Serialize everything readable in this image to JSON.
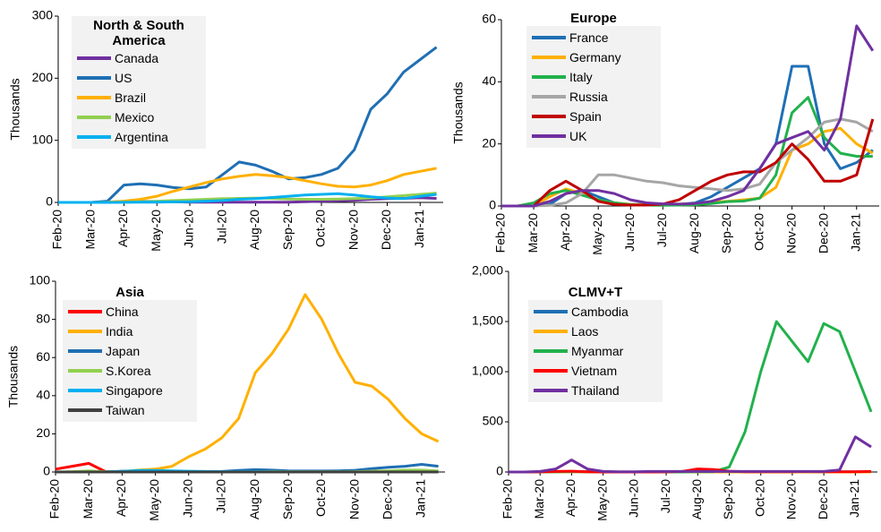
{
  "chart_data": [
    {
      "type": "line",
      "title": "North & South America",
      "y_label": "Thousands",
      "categories": [
        "Feb-20",
        null,
        "Mar-20",
        null,
        "Apr-20",
        null,
        "May-20",
        null,
        "Jun-20",
        null,
        "Jul-20",
        null,
        "Aug-20",
        null,
        "Sep-20",
        null,
        "Oct-20",
        null,
        "Nov-20",
        null,
        "Dec-20",
        null,
        "Jan-21",
        null
      ],
      "ylim": [
        0,
        300
      ],
      "yticks": [
        0,
        100,
        200,
        300
      ],
      "series": [
        {
          "name": "Canada",
          "color": "#7030a0",
          "values": [
            0,
            0,
            0,
            0.5,
            1.5,
            1.8,
            1.5,
            1,
            0.5,
            0.3,
            0.3,
            0.4,
            0.4,
            0.4,
            0.5,
            1,
            1.8,
            2.5,
            3.5,
            5,
            6,
            6.5,
            7.5,
            6.5
          ]
        },
        {
          "name": "US",
          "color": "#1f6fb4",
          "values": [
            0,
            0,
            0,
            2,
            28,
            30,
            28,
            24,
            22,
            25,
            45,
            65,
            60,
            50,
            38,
            40,
            45,
            55,
            85,
            150,
            175,
            210,
            230,
            250
          ]
        },
        {
          "name": "Brazil",
          "color": "#ffb000",
          "values": [
            0,
            0,
            0,
            0.5,
            2,
            5,
            10,
            18,
            25,
            32,
            38,
            42,
            45,
            43,
            40,
            35,
            30,
            26,
            25,
            28,
            35,
            45,
            50,
            55
          ]
        },
        {
          "name": "Mexico",
          "color": "#92d050",
          "values": [
            0,
            0,
            0,
            0,
            0.5,
            1,
            2,
            3,
            4,
            5,
            6,
            6.5,
            7,
            6.5,
            5.5,
            5,
            5,
            5.5,
            6,
            7,
            9,
            11,
            13,
            15
          ]
        },
        {
          "name": "Argentina",
          "color": "#00b0f0",
          "values": [
            0,
            0,
            0,
            0,
            0.2,
            0.3,
            0.5,
            0.8,
            1,
            2,
            3,
            5,
            6,
            8,
            10,
            12,
            13,
            14,
            12,
            9,
            7,
            6,
            10,
            13
          ]
        }
      ]
    },
    {
      "type": "line",
      "title": "Europe",
      "y_label": "Thousands",
      "categories": [
        "Feb-20",
        null,
        "Mar-20",
        null,
        "Apr-20",
        null,
        "May-20",
        null,
        "Jun-20",
        null,
        "Jul-20",
        null,
        "Aug-20",
        null,
        "Sep-20",
        null,
        "Oct-20",
        null,
        "Nov-20",
        null,
        "Dec-20",
        null,
        "Jan-21",
        null
      ],
      "ylim": [
        0,
        60
      ],
      "yticks": [
        0,
        20,
        40,
        60
      ],
      "series": [
        {
          "name": "France",
          "color": "#1f6fb4",
          "values": [
            0,
            0,
            0,
            0.5,
            4,
            5,
            3,
            1,
            0.5,
            0.5,
            0.5,
            0.5,
            1,
            3,
            6,
            9,
            12,
            20,
            45,
            45,
            20,
            12,
            14,
            18
          ]
        },
        {
          "name": "Germany",
          "color": "#ffb000",
          "values": [
            0,
            0,
            0,
            3,
            5.5,
            4,
            2,
            1,
            0.5,
            0.4,
            0.4,
            0.6,
            0.8,
            1.2,
            1.5,
            2,
            2.5,
            6,
            18,
            20,
            24,
            25,
            20,
            17
          ]
        },
        {
          "name": "Italy",
          "color": "#22b14c",
          "values": [
            0,
            0,
            1,
            4,
            5,
            3.5,
            2,
            1,
            0.4,
            0.3,
            0.2,
            0.3,
            0.4,
            0.8,
            1.4,
            1.6,
            2.5,
            10,
            30,
            35,
            22,
            17,
            16,
            16
          ]
        },
        {
          "name": "Russia",
          "color": "#a6a6a6",
          "values": [
            0,
            0,
            0,
            0.2,
            1,
            4,
            10,
            10,
            9,
            8,
            7.5,
            6.5,
            6,
            5.5,
            5,
            5.5,
            7,
            14,
            18,
            22,
            27,
            28,
            27,
            24
          ]
        },
        {
          "name": "Spain",
          "color": "#c00000",
          "values": [
            0,
            0,
            0,
            5,
            8,
            5,
            1.5,
            0.5,
            0.3,
            0.3,
            0.6,
            2,
            5,
            8,
            10,
            11,
            11,
            14,
            20,
            15,
            8,
            8,
            10,
            28
          ]
        },
        {
          "name": "UK",
          "color": "#7030a0",
          "values": [
            0,
            0,
            0,
            1.5,
            4,
            5,
            5,
            4,
            2,
            1,
            0.7,
            0.6,
            0.8,
            1.5,
            3,
            5,
            12,
            20,
            22,
            24,
            18,
            28,
            58,
            50
          ]
        }
      ]
    },
    {
      "type": "line",
      "title": "Asia",
      "y_label": "Thousands",
      "categories": [
        "Feb-20",
        null,
        "Mar-20",
        null,
        "Apr-20",
        null,
        "May-20",
        null,
        "Jun-20",
        null,
        "Jul-20",
        null,
        "Aug-20",
        null,
        "Sep-20",
        null,
        "Oct-20",
        null,
        "Nov-20",
        null,
        "Dec-20",
        null,
        "Jan-21",
        null
      ],
      "ylim": [
        0,
        100
      ],
      "yticks": [
        0,
        20,
        40,
        60,
        80,
        100
      ],
      "series": [
        {
          "name": "China",
          "color": "#ff0000",
          "values": [
            1.5,
            3,
            4.5,
            0.2,
            0.05,
            0.05,
            0,
            0,
            0,
            0,
            0,
            0,
            0.05,
            0,
            0,
            0,
            0,
            0,
            0,
            0,
            0,
            0,
            0.1,
            0.1
          ]
        },
        {
          "name": "India",
          "color": "#ffb000",
          "values": [
            0,
            0,
            0,
            0,
            0.3,
            1,
            1.5,
            3,
            8,
            12,
            18,
            28,
            52,
            62,
            75,
            93,
            80,
            62,
            47,
            45,
            38,
            28,
            20,
            16
          ]
        },
        {
          "name": "Japan",
          "color": "#1f6fb4",
          "values": [
            0,
            0,
            0,
            0.1,
            0.4,
            0.5,
            0.2,
            0.05,
            0.05,
            0.1,
            0.3,
            0.8,
            1.2,
            1,
            0.6,
            0.5,
            0.5,
            0.6,
            0.9,
            1.8,
            2.5,
            3,
            4,
            3
          ]
        },
        {
          "name": "S.Korea",
          "color": "#92d050",
          "values": [
            0,
            0.2,
            0.6,
            0.1,
            0.1,
            0.05,
            0.05,
            0.05,
            0.05,
            0.05,
            0.05,
            0.05,
            0.1,
            0.3,
            0.2,
            0.1,
            0.1,
            0.1,
            0.2,
            0.4,
            0.6,
            1,
            1,
            0.5
          ]
        },
        {
          "name": "Singapore",
          "color": "#00b0f0",
          "values": [
            0,
            0,
            0,
            0,
            0.3,
            0.8,
            0.8,
            0.6,
            0.4,
            0.3,
            0.2,
            0.2,
            0.2,
            0.1,
            0.05,
            0,
            0,
            0,
            0,
            0,
            0,
            0,
            0,
            0
          ]
        },
        {
          "name": "Taiwan",
          "color": "#404040",
          "values": [
            0,
            0,
            0,
            0,
            0,
            0,
            0,
            0,
            0,
            0,
            0,
            0,
            0,
            0,
            0,
            0,
            0,
            0,
            0,
            0,
            0,
            0,
            0,
            0
          ]
        }
      ]
    },
    {
      "type": "line",
      "title": "CLMV+T",
      "categories": [
        "Feb-20",
        null,
        "Mar-20",
        null,
        "Apr-20",
        null,
        "May-20",
        null,
        "Jun-20",
        null,
        "Jul-20",
        null,
        "Aug-20",
        null,
        "Sep-20",
        null,
        "Oct-20",
        null,
        "Nov-20",
        null,
        "Dec-20",
        null,
        "Jan-21",
        null
      ],
      "ylim": [
        0,
        2000
      ],
      "yticks": [
        0,
        500,
        {
          "value": 1000,
          "label": "1,000"
        },
        {
          "value": 1500,
          "label": "1,500"
        },
        {
          "value": 2000,
          "label": "2,000"
        }
      ],
      "series": [
        {
          "name": "Cambodia",
          "color": "#1f6fb4",
          "values": [
            0,
            0,
            0,
            1,
            2,
            1,
            0,
            0,
            0,
            0,
            0,
            0,
            0,
            0,
            0,
            0,
            0,
            0,
            0,
            1,
            2,
            2,
            3,
            2
          ]
        },
        {
          "name": "Laos",
          "color": "#ffb000",
          "values": [
            0,
            0,
            0,
            1,
            2,
            1,
            0,
            0,
            0,
            0,
            0,
            0,
            0,
            0,
            0,
            0,
            0,
            0,
            0,
            0,
            0,
            0,
            0,
            0
          ]
        },
        {
          "name": "Myanmar",
          "color": "#22b14c",
          "values": [
            0,
            0,
            0,
            2,
            5,
            3,
            1,
            0,
            0,
            0,
            0,
            0,
            2,
            3,
            50,
            400,
            1000,
            1500,
            1300,
            1100,
            1480,
            1400,
            1000,
            600
          ]
        },
        {
          "name": "Vietnam",
          "color": "#ff0000",
          "values": [
            0,
            0,
            1,
            5,
            8,
            3,
            0,
            0,
            0,
            0,
            1,
            5,
            30,
            25,
            8,
            2,
            2,
            2,
            3,
            4,
            3,
            2,
            2,
            5
          ]
        },
        {
          "name": "Thailand",
          "color": "#7030a0",
          "values": [
            0,
            0,
            5,
            30,
            120,
            30,
            5,
            2,
            3,
            5,
            5,
            5,
            5,
            5,
            5,
            5,
            5,
            5,
            5,
            5,
            5,
            20,
            350,
            250
          ]
        }
      ]
    }
  ]
}
